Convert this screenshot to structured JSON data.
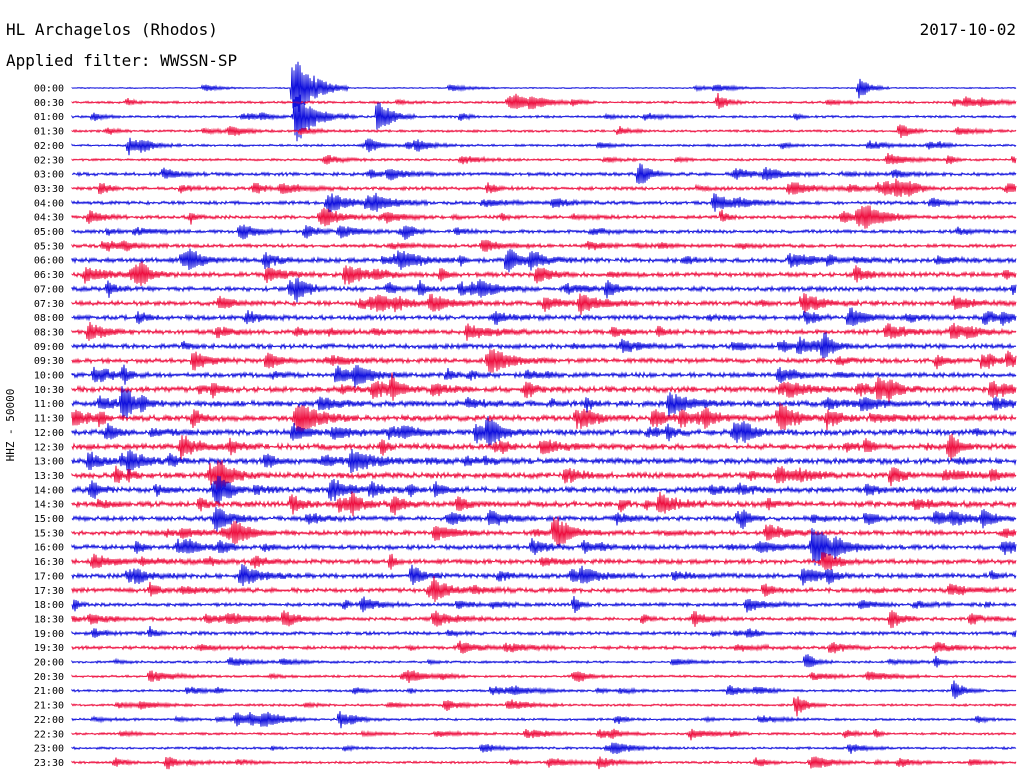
{
  "header": {
    "station": "HL Archagelos (Rhodos)",
    "date": "2017-10-02",
    "filter": "Applied filter: WWSSN-SP"
  },
  "channel_label": "HHZ - 50000",
  "colors": {
    "blue": "#1010dd",
    "red": "#ee1040",
    "text": "#000000",
    "background": "#ffffff"
  },
  "chart_data": {
    "type": "line",
    "title": "HL Archagelos (Rhodos)",
    "date": "2017-10-02",
    "filter": "WWSSN-SP",
    "ylabel": "HHZ - 50000",
    "xlabel": "",
    "row_duration_minutes": 30,
    "color_cycle": [
      "blue",
      "red"
    ],
    "row_labels": [
      "00:00",
      "00:30",
      "01:00",
      "01:30",
      "02:00",
      "02:30",
      "03:00",
      "03:30",
      "04:00",
      "04:30",
      "05:00",
      "05:30",
      "06:00",
      "06:30",
      "07:00",
      "07:30",
      "08:00",
      "08:30",
      "09:00",
      "09:30",
      "10:00",
      "10:30",
      "11:00",
      "11:30",
      "12:00",
      "12:30",
      "13:00",
      "13:30",
      "14:00",
      "14:30",
      "15:00",
      "15:30",
      "16:00",
      "16:30",
      "17:00",
      "17:30",
      "18:00",
      "18:30",
      "19:00",
      "19:30",
      "20:00",
      "20:30",
      "21:00",
      "21:30",
      "22:00",
      "22:30",
      "23:00",
      "23:30"
    ],
    "noise_level": [
      1,
      2,
      2,
      2,
      2,
      2,
      3,
      3,
      3,
      3,
      3,
      3,
      4,
      4,
      4,
      4,
      4,
      4,
      4,
      4,
      4,
      5,
      5,
      5,
      5,
      5,
      5,
      5,
      5,
      5,
      4,
      4,
      4,
      4,
      4,
      4,
      3,
      3,
      3,
      3,
      2,
      2,
      2,
      2,
      2,
      2,
      2,
      2
    ],
    "events": [
      {
        "row": 0,
        "minute": 7.0,
        "amplitude": 36
      },
      {
        "row": 0,
        "minute": 25.0,
        "amplitude": 12
      },
      {
        "row": 1,
        "minute": 20.5,
        "amplitude": 10
      },
      {
        "row": 2,
        "minute": 7.1,
        "amplitude": 28
      },
      {
        "row": 2,
        "minute": 9.7,
        "amplitude": 20
      },
      {
        "row": 3,
        "minute": 26.3,
        "amplitude": 10
      },
      {
        "row": 4,
        "minute": 1.8,
        "amplitude": 10
      },
      {
        "row": 6,
        "minute": 18.0,
        "amplitude": 14
      },
      {
        "row": 12,
        "minute": 13.8,
        "amplitude": 16
      },
      {
        "row": 14,
        "minute": 12.3,
        "amplitude": 8
      },
      {
        "row": 16,
        "minute": 23.3,
        "amplitude": 10
      },
      {
        "row": 21,
        "minute": 29.2,
        "amplitude": 10
      },
      {
        "row": 23,
        "minute": 16.0,
        "amplitude": 10
      },
      {
        "row": 24,
        "minute": 1.1,
        "amplitude": 10
      },
      {
        "row": 27,
        "minute": 26.0,
        "amplitude": 12
      },
      {
        "row": 29,
        "minute": 10.2,
        "amplitude": 12
      },
      {
        "row": 31,
        "minute": 15.3,
        "amplitude": 16
      },
      {
        "row": 32,
        "minute": 23.5,
        "amplitude": 14
      },
      {
        "row": 34,
        "minute": 10.8,
        "amplitude": 12
      },
      {
        "row": 37,
        "minute": 26.0,
        "amplitude": 12
      },
      {
        "row": 40,
        "minute": 23.3,
        "amplitude": 10
      },
      {
        "row": 42,
        "minute": 28.0,
        "amplitude": 12
      },
      {
        "row": 43,
        "minute": 23.0,
        "amplitude": 12
      },
      {
        "row": 44,
        "minute": 8.5,
        "amplitude": 10
      },
      {
        "row": 47,
        "minute": 3.0,
        "amplitude": 8
      }
    ]
  }
}
